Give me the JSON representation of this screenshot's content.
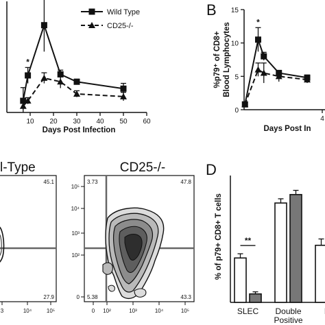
{
  "panels": {
    "B": "B",
    "D": "D"
  },
  "chart_data": [
    {
      "type": "line",
      "panel": "A",
      "xlabel": "Days Post Infection",
      "ylabel": "",
      "xlim": [
        0,
        60
      ],
      "ylim": [
        0,
        21
      ],
      "xticks": [
        "10",
        "20",
        "30",
        "40",
        "50",
        "60"
      ],
      "series": [
        {
          "name": "Wild Type",
          "line": "solid",
          "marker": "square",
          "x": [
            7,
            9,
            16,
            23,
            30,
            50
          ],
          "y": [
            2.2,
            7.0,
            16.5,
            7.2,
            5.8,
            4.5
          ],
          "err": [
            2.5,
            1.5,
            5.0,
            0.8,
            0.5,
            1.0
          ]
        },
        {
          "name": "CD25-/-",
          "line": "dashed",
          "marker": "triangle",
          "x": [
            7,
            9,
            16,
            23,
            30,
            50
          ],
          "y": [
            1.2,
            2.2,
            6.5,
            5.8,
            3.5,
            3.0
          ],
          "err": [
            0.8,
            0.6,
            1.0,
            1.2,
            0.6,
            0.8
          ]
        }
      ],
      "annotations": [
        {
          "text": "*",
          "x": 9
        },
        {
          "text": "***",
          "x": 16
        }
      ]
    },
    {
      "type": "line",
      "panel": "B",
      "xlabel": "Days Post In",
      "ylabel": "%p79⁺ of CD8+ Blood Lymphocytes",
      "ylim": [
        0,
        15
      ],
      "yticks": [
        "0",
        "5",
        "10",
        "15"
      ],
      "xticks": [
        "4"
      ],
      "series": [
        {
          "name": "Wild Type",
          "line": "solid",
          "marker": "square",
          "x": [
            7,
            14,
            17,
            25,
            40
          ],
          "y": [
            0.8,
            10.5,
            8.0,
            5.5,
            4.8
          ],
          "err": [
            0.3,
            1.8,
            0.6,
            0.4,
            0.4
          ]
        },
        {
          "name": "CD25-/-",
          "line": "dashed",
          "marker": "triangle",
          "x": [
            7,
            14,
            17,
            25,
            40
          ],
          "y": [
            0.8,
            6.0,
            5.5,
            5.0,
            4.5
          ],
          "err": [
            0.3,
            1.0,
            1.5,
            0.8,
            0.5
          ]
        }
      ],
      "annotations": [
        {
          "text": "*",
          "x": 14
        }
      ]
    },
    {
      "type": "contour",
      "panel": "C-left",
      "title": "l-Type",
      "quadrants": {
        "upper_right": "45.1",
        "lower_right": "27.9"
      },
      "xticks": [
        "3",
        "10⁴",
        "10⁵"
      ]
    },
    {
      "type": "contour",
      "panel": "C-right",
      "title": "CD25-/-",
      "quadrants": {
        "upper_left": "3.73",
        "upper_right": "47.8",
        "lower_left": "5.38",
        "lower_right": "43.3"
      },
      "yticks": [
        "10⁵",
        "10⁴",
        "10³",
        "10²",
        "0"
      ],
      "xticks": [
        "0",
        "10²",
        "10³",
        "10⁴",
        "10⁵"
      ]
    },
    {
      "type": "bar",
      "panel": "D",
      "ylabel": "% of p79+ CD8+ T cells",
      "categories": [
        "SLEC",
        "Double Positive",
        "MI"
      ],
      "category_lines": [
        [
          "SLEC"
        ],
        [
          "Double",
          "Positive"
        ],
        [
          "MI"
        ]
      ],
      "series": [
        {
          "color": "#ffffff",
          "values": [
            21,
            47,
            27
          ],
          "err": [
            2,
            2,
            3
          ]
        },
        {
          "color": "#777777",
          "values": [
            4,
            51,
            48
          ],
          "err": [
            1,
            2,
            2
          ]
        }
      ],
      "ylim": [
        0,
        60
      ],
      "annotations": [
        {
          "text": "**",
          "category": "SLEC"
        }
      ]
    }
  ]
}
